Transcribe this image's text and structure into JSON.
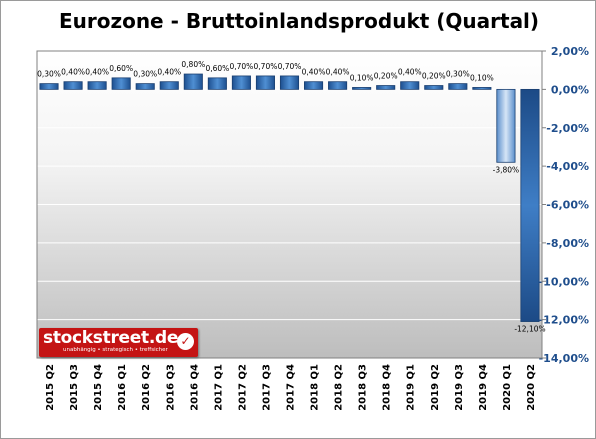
{
  "chart_data": {
    "type": "bar",
    "title": "Eurozone - Bruttoinlandsprodukt (Quartal)",
    "categories": [
      "2015 Q2",
      "2015 Q3",
      "2015 Q4",
      "2016 Q1",
      "2016 Q2",
      "2016 Q3",
      "2016 Q4",
      "2017 Q1",
      "2017 Q2",
      "2017 Q3",
      "2017 Q4",
      "2018 Q1",
      "2018 Q2",
      "2018 Q3",
      "2018 Q4",
      "2019 Q1",
      "2019 Q2",
      "2019 Q3",
      "2019 Q4",
      "2020 Q1",
      "2020 Q2"
    ],
    "values": [
      0.3,
      0.4,
      0.4,
      0.6,
      0.3,
      0.4,
      0.8,
      0.6,
      0.7,
      0.7,
      0.7,
      0.4,
      0.4,
      0.1,
      0.2,
      0.4,
      0.2,
      0.3,
      0.1,
      -3.8,
      -12.1
    ],
    "value_labels": [
      "0,30%",
      "0,40%",
      "0,40%",
      "0,60%",
      "0,30%",
      "0,40%",
      "0,80%",
      "0,60%",
      "0,70%",
      "0,70%",
      "0,70%",
      "0,40%",
      "0,40%",
      "0,10%",
      "0,20%",
      "0,40%",
      "0,20%",
      "0,30%",
      "0,10%",
      "-3,80%",
      "-12,10%"
    ],
    "y_ticks": [
      2,
      0,
      -2,
      -4,
      -6,
      -8,
      -10,
      -12,
      -14
    ],
    "y_tick_labels": [
      "2,00%",
      "0,00%",
      "-2,00%",
      "-4,00%",
      "-6,00%",
      "-8,00%",
      "-10,00%",
      "-12,00%",
      "-14,00%"
    ],
    "ylim": [
      -14,
      2
    ],
    "y_axis_side": "right",
    "grid": true,
    "colors": {
      "bar": "#2e6bb3",
      "bar_light": "#a9c6e8",
      "axis_label": "#1f4e8c"
    }
  },
  "branding": {
    "name": "stockstreet.de",
    "tagline": "unabhängig • strategisch • treffsicher",
    "check_icon": "check-circle-icon",
    "color": "#c41414"
  }
}
